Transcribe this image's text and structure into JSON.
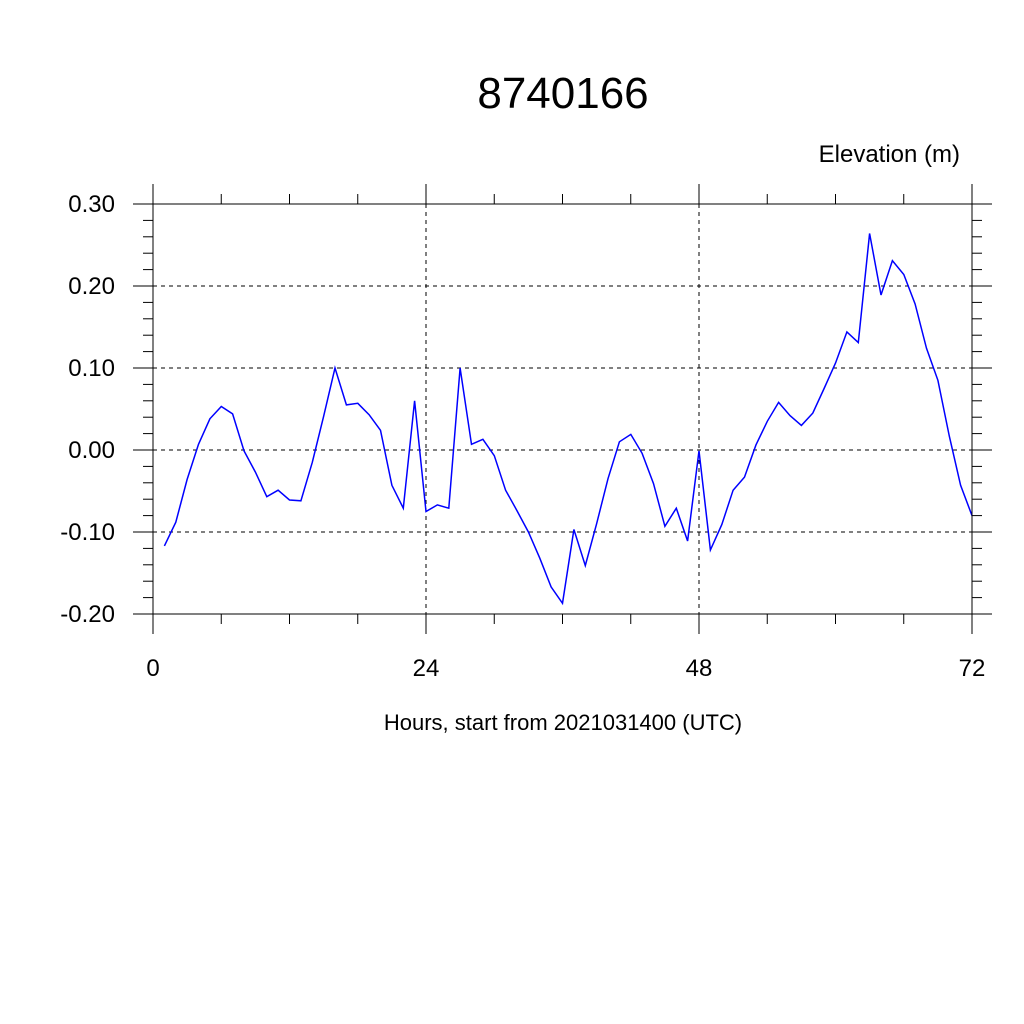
{
  "chart_data": {
    "type": "line",
    "title": "8740166",
    "ylabel": "Elevation (m)",
    "xlabel": "Hours, start from 2021031400 (UTC)",
    "xlim": [
      0,
      72
    ],
    "ylim": [
      -0.2,
      0.3
    ],
    "x_ticks": [
      0,
      24,
      48,
      72
    ],
    "x_tick_labels": [
      "0",
      "24",
      "48",
      "72"
    ],
    "y_ticks": [
      -0.2,
      -0.1,
      0.0,
      0.1,
      0.2,
      0.3
    ],
    "y_tick_labels": [
      "-0.20",
      "-0.10",
      "0.00",
      "0.10",
      "0.20",
      "0.30"
    ],
    "grid": true,
    "series": [
      {
        "color": "#0000ff",
        "x": [
          1,
          2,
          3,
          4,
          5,
          6,
          7,
          8,
          9,
          10,
          11,
          12,
          13,
          14,
          15,
          16,
          17,
          18,
          19,
          20,
          21,
          22,
          23,
          24,
          25,
          26,
          27,
          28,
          29,
          30,
          31,
          32,
          33,
          34,
          35,
          36,
          37,
          38,
          39,
          40,
          41,
          42,
          43,
          44,
          45,
          46,
          47,
          48,
          49,
          50,
          51,
          52,
          53,
          54,
          55,
          56,
          57,
          58,
          59,
          60,
          61,
          62,
          63,
          64,
          65,
          66,
          67,
          68,
          69,
          70,
          71,
          72
        ],
        "y": [
          -0.117,
          -0.088,
          -0.036,
          0.007,
          0.038,
          0.053,
          0.044,
          -0.001,
          -0.027,
          -0.057,
          -0.049,
          -0.061,
          -0.062,
          -0.015,
          0.041,
          0.1,
          0.055,
          0.057,
          0.043,
          0.024,
          -0.043,
          -0.071,
          0.06,
          -0.075,
          -0.067,
          -0.071,
          0.1,
          0.007,
          0.013,
          -0.007,
          -0.049,
          -0.074,
          -0.1,
          -0.132,
          -0.167,
          -0.187,
          -0.097,
          -0.141,
          -0.09,
          -0.035,
          0.01,
          0.019,
          -0.004,
          -0.041,
          -0.093,
          -0.071,
          -0.111,
          -0.001,
          -0.122,
          -0.091,
          -0.049,
          -0.033,
          0.006,
          0.035,
          0.058,
          0.042,
          0.03,
          0.045,
          0.075,
          0.106,
          0.144,
          0.131,
          0.264,
          0.189,
          0.231,
          0.214,
          0.178,
          0.124,
          0.085,
          0.017,
          -0.043,
          -0.08
        ]
      }
    ]
  }
}
